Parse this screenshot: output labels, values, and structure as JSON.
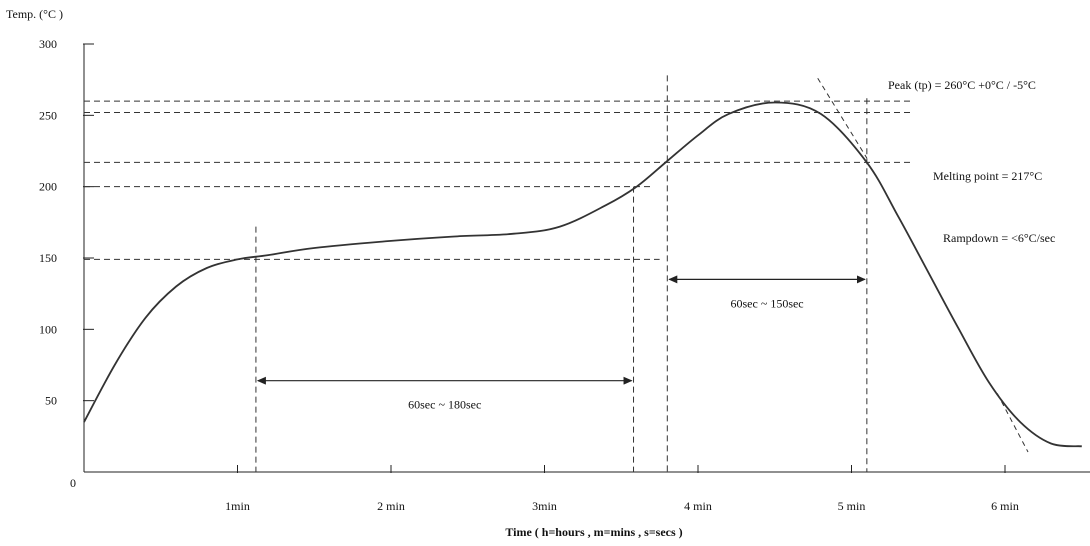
{
  "chart_data": {
    "type": "line",
    "title": "",
    "ylabel": "Temp. (°C )",
    "xlabel": "Time ( h=hours , m=mins , s=secs )",
    "ylim": [
      0,
      300
    ],
    "xlim_min": [
      0,
      6.5
    ],
    "grid": false,
    "y_ticks": [
      {
        "value": 0,
        "label": "0"
      },
      {
        "value": 50,
        "label": "50"
      },
      {
        "value": 100,
        "label": "100"
      },
      {
        "value": 150,
        "label": "150"
      },
      {
        "value": 200,
        "label": "200"
      },
      {
        "value": 250,
        "label": "250"
      },
      {
        "value": 300,
        "label": "300"
      }
    ],
    "x_ticks": [
      {
        "value": 1,
        "label": "1min"
      },
      {
        "value": 2,
        "label": "2 min"
      },
      {
        "value": 3,
        "label": "3min"
      },
      {
        "value": 4,
        "label": "4 min"
      },
      {
        "value": 5,
        "label": "5 min"
      },
      {
        "value": 6,
        "label": "6 min"
      }
    ],
    "series": [
      {
        "points": [
          [
            0,
            35
          ],
          [
            0.2,
            75
          ],
          [
            0.4,
            108
          ],
          [
            0.6,
            130
          ],
          [
            0.8,
            143
          ],
          [
            1.0,
            149
          ],
          [
            1.2,
            152
          ],
          [
            1.5,
            157
          ],
          [
            2.0,
            162
          ],
          [
            2.4,
            165
          ],
          [
            2.8,
            167
          ],
          [
            3.1,
            172
          ],
          [
            3.4,
            187
          ],
          [
            3.6,
            200
          ],
          [
            3.8,
            218
          ],
          [
            4.0,
            236
          ],
          [
            4.2,
            251
          ],
          [
            4.5,
            259
          ],
          [
            4.8,
            251
          ],
          [
            5.1,
            217
          ],
          [
            5.3,
            180
          ],
          [
            5.5,
            140
          ],
          [
            5.7,
            100
          ],
          [
            5.9,
            62
          ],
          [
            6.1,
            35
          ],
          [
            6.3,
            20
          ],
          [
            6.5,
            18
          ]
        ]
      }
    ],
    "reference_lines": {
      "horizontal": [
        {
          "y": 260,
          "x_end": 5.4
        },
        {
          "y": 252,
          "x_end": 5.4
        },
        {
          "y": 217,
          "x_end": 5.4
        },
        {
          "y": 200,
          "x_end": 3.7
        },
        {
          "y": 149,
          "x_end": 3.75
        }
      ],
      "vertical": [
        {
          "x": 1.12,
          "y_top": 172
        },
        {
          "x": 3.58,
          "y_top": 200
        },
        {
          "x": 3.8,
          "y_top": 278
        },
        {
          "x": 5.1,
          "y_top": 262
        }
      ],
      "tangents": [
        {
          "from": [
            4.78,
            276
          ],
          "to": [
            5.1,
            220
          ]
        },
        {
          "from": [
            5.95,
            55
          ],
          "to": [
            6.15,
            14
          ]
        }
      ]
    },
    "spans": [
      {
        "x_start": 1.12,
        "x_end": 3.58,
        "y": 64,
        "label": "60sec ~ 180sec"
      },
      {
        "x_start": 3.8,
        "x_end": 5.1,
        "y": 135,
        "label": "60sec ~ 150sec"
      }
    ],
    "annotations": [
      {
        "text": "Peak (tp) = 260°C +0°C / -5°C"
      },
      {
        "text": "Melting point = 217°C"
      },
      {
        "text": "Rampdown = <6°C/sec"
      }
    ]
  }
}
